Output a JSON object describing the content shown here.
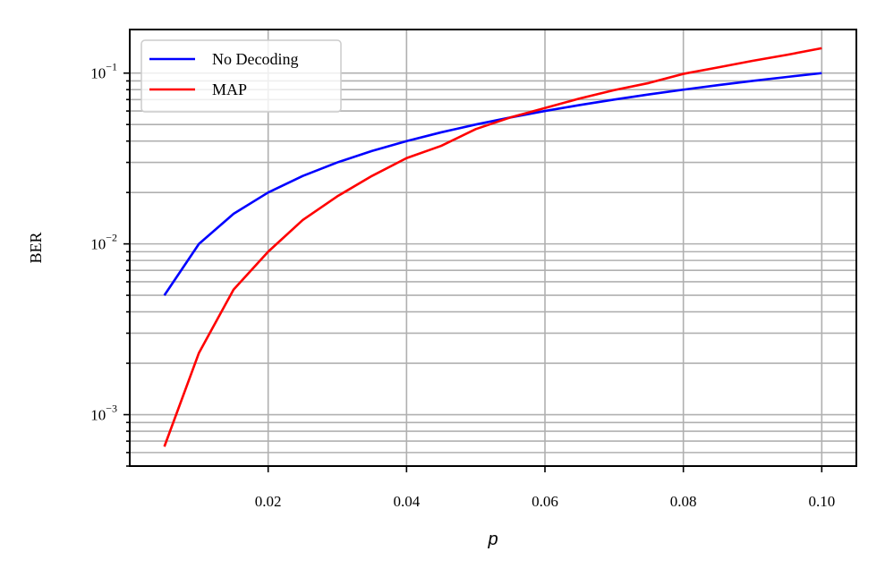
{
  "chart_data": {
    "type": "line",
    "xlabel": "p",
    "ylabel": "BER",
    "xlim": [
      0.0,
      0.105
    ],
    "ylim": [
      0.0005,
      0.18
    ],
    "yscale": "log",
    "grid": "major x, major and minor y",
    "legend_position": "top-left",
    "x_ticks": [
      0.02,
      0.04,
      0.06,
      0.08,
      0.1
    ],
    "x_tick_labels": [
      "0.02",
      "0.04",
      "0.06",
      "0.08",
      "0.10"
    ],
    "y_ticks": [
      0.001,
      0.01,
      0.1
    ],
    "y_tick_labels": [
      {
        "base": "10",
        "exp": "−3"
      },
      {
        "base": "10",
        "exp": "−2"
      },
      {
        "base": "10",
        "exp": "−1"
      }
    ],
    "x": [
      0.005,
      0.01,
      0.015,
      0.02,
      0.025,
      0.03,
      0.035,
      0.04,
      0.045,
      0.05,
      0.055,
      0.06,
      0.065,
      0.07,
      0.075,
      0.08,
      0.085,
      0.09,
      0.095,
      0.1
    ],
    "series": [
      {
        "name": "No Decoding",
        "color": "#0000ff",
        "values": [
          0.005,
          0.01,
          0.015,
          0.02,
          0.025,
          0.03,
          0.035,
          0.04,
          0.045,
          0.05,
          0.055,
          0.06,
          0.065,
          0.07,
          0.075,
          0.08,
          0.085,
          0.09,
          0.095,
          0.1
        ]
      },
      {
        "name": "MAP",
        "color": "#ff0000",
        "values": [
          0.00065,
          0.0023,
          0.0054,
          0.009,
          0.0138,
          0.019,
          0.025,
          0.0318,
          0.0375,
          0.047,
          0.055,
          0.0625,
          0.071,
          0.0795,
          0.0875,
          0.099,
          0.108,
          0.118,
          0.128,
          0.14
        ]
      }
    ]
  }
}
